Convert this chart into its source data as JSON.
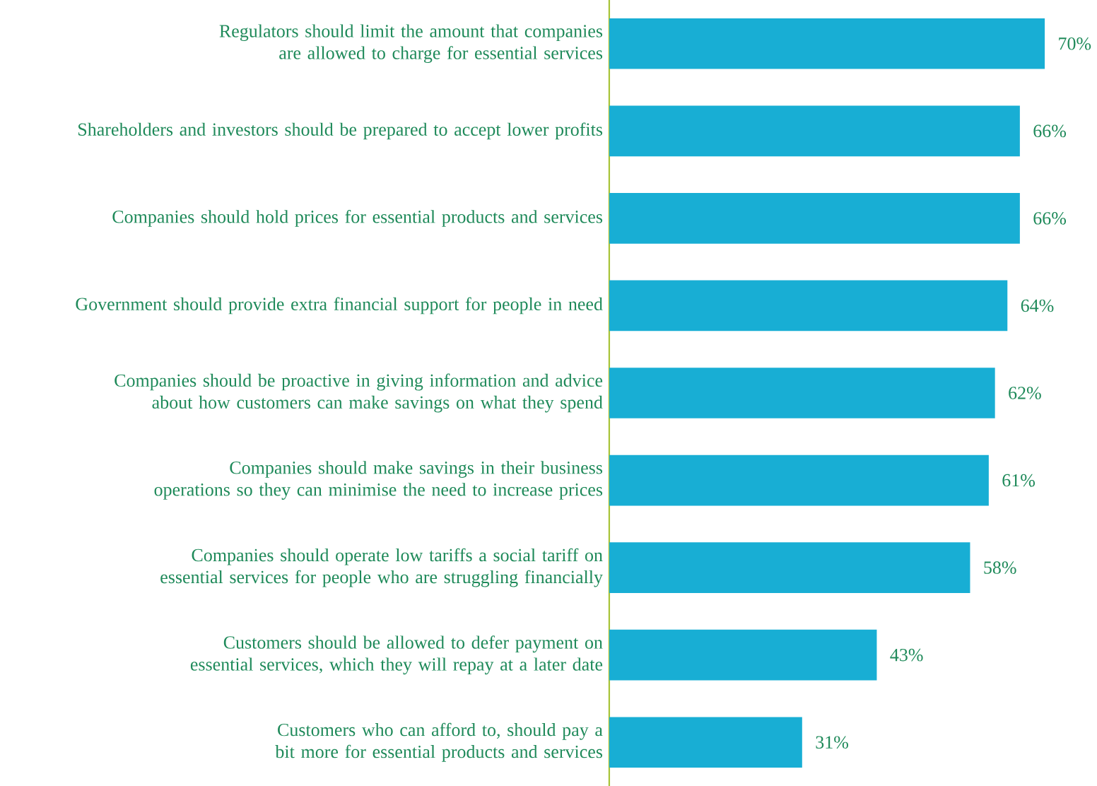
{
  "chart_data": {
    "type": "bar",
    "orientation": "horizontal",
    "color": "#18aed4",
    "categories": [
      "Regulators should limit the amount that companies are allowed to charge for essential services",
      "Shareholders and investors should be prepared to accept lower profits",
      "Companies should hold prices for essential products and services",
      "Government should provide extra financial support for people in need",
      "Companies should be proactive in giving information and advice about how customers can make savings on what they spend",
      "Companies should make savings in their business operations so they can minimise the need to increase prices",
      "Companies should operate low tariffs a social tariff on essential services for people who are struggling financially",
      "Customers should be allowed to defer payment on essential services, which they will repay at a later date",
      "Customers who can afford to, should pay a bit more for essential products and services"
    ],
    "values": [
      70,
      66,
      66,
      64,
      62,
      61,
      58,
      43,
      31
    ],
    "value_labels": [
      "70%",
      "66%",
      "66%",
      "64%",
      "62%",
      "61%",
      "58%",
      "43%",
      "31%"
    ]
  }
}
